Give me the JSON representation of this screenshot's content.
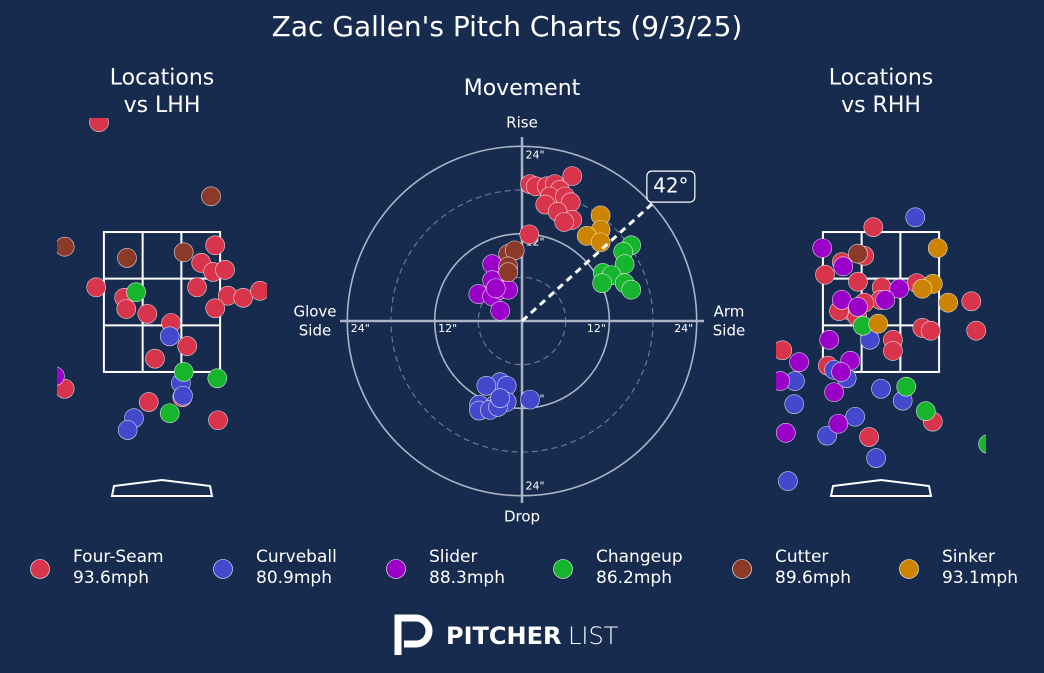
{
  "title": "Zac Gallen's Pitch Charts (9/3/25)",
  "chart_data": [
    {
      "type": "scatter",
      "title": "Locations\nvs LHH",
      "strike_zone": true,
      "xlim": [
        -1.5,
        1.5
      ],
      "ylim": [
        -0.33,
        5.13
      ],
      "series": [
        {
          "name": "Four-Seam",
          "color": "#d8344c",
          "x": [
            -0.9,
            -0.94,
            -0.54,
            -0.51,
            -0.21,
            0.13,
            -0.1,
            0.36,
            0.76,
            0.56,
            0.73,
            0.9,
            0.5,
            0.94,
            1.16,
            1.4,
            0.76,
            -1.39,
            -0.19,
            0.29,
            0.8
          ],
          "y": [
            5.07,
            2.71,
            2.56,
            2.4,
            2.33,
            2.2,
            1.69,
            1.87,
            3.31,
            3.06,
            2.93,
            2.96,
            2.71,
            2.59,
            2.56,
            2.66,
            2.41,
            1.26,
            1.07,
            1.14,
            0.81
          ]
        },
        {
          "name": "Curveball",
          "color": "#4448cc",
          "x": [
            0.11,
            0.27,
            0.3,
            -0.4,
            -0.49
          ],
          "y": [
            2.01,
            1.34,
            1.16,
            0.84,
            0.67
          ]
        },
        {
          "name": "Slider",
          "color": "#9b00c8",
          "x": [
            -1.53
          ],
          "y": [
            1.44
          ]
        },
        {
          "name": "Changeup",
          "color": "#17b42d",
          "x": [
            -0.37,
            0.31,
            0.79,
            0.11
          ],
          "y": [
            2.64,
            1.5,
            1.41,
            0.91
          ]
        },
        {
          "name": "Cutter",
          "color": "#8b3a2a",
          "x": [
            0.7,
            -1.39,
            -0.5,
            0.31
          ],
          "y": [
            4.01,
            3.29,
            3.13,
            3.21
          ]
        }
      ]
    },
    {
      "type": "scatter",
      "title": "Movement",
      "grid": "polar",
      "xlim": [
        -25,
        25
      ],
      "ylim": [
        -25,
        25
      ],
      "xticks": [
        {
          "value": -24,
          "label": "24\""
        },
        {
          "value": -12,
          "label": "12\""
        },
        {
          "value": 12,
          "label": "12\""
        },
        {
          "value": 24,
          "label": "24\""
        }
      ],
      "yticks": [
        {
          "value": -24,
          "label": "24\""
        },
        {
          "value": -12,
          "label": "12\""
        },
        {
          "value": 12,
          "label": "12\""
        },
        {
          "value": 24,
          "label": "24\""
        }
      ],
      "axis_labels": {
        "top": "Rise",
        "bottom": "Drop",
        "left": "Glove\nSide",
        "right": "Arm\nSide"
      },
      "arm_angle": {
        "value": 42,
        "label": "42°"
      },
      "series": [
        {
          "name": "Four-Seam",
          "color": "#d8344c",
          "x": [
            1.1,
            1.9,
            3.4,
            4.5,
            6.9,
            5.2,
            3.8,
            5.9,
            6.7,
            3.2,
            4.9,
            6.9,
            5.8,
            1.0
          ],
          "y": [
            18.8,
            18.5,
            18.5,
            18.8,
            19.9,
            18.0,
            17.1,
            17.1,
            16.3,
            16.0,
            15.0,
            13.9,
            13.6,
            11.9
          ]
        },
        {
          "name": "Curveball",
          "color": "#4448cc",
          "x": [
            -3,
            -4.9,
            -2.1,
            1.1,
            -5.9,
            -3.7,
            -2.1,
            -5.9,
            -4.4,
            -3.3,
            -3
          ],
          "y": [
            -8.4,
            -8.9,
            -8.9,
            -10.8,
            -11.5,
            -11.5,
            -11.1,
            -12.3,
            -12.2,
            -11.8,
            -10.6
          ]
        },
        {
          "name": "Slider",
          "color": "#9b00c8",
          "x": [
            -4.1,
            -4.1,
            -6,
            -4.1,
            -3,
            -1.9,
            -3,
            -3.6
          ],
          "y": [
            7.8,
            5.6,
            3.7,
            3.4,
            4.3,
            4.3,
            1.4,
            4.5
          ]
        },
        {
          "name": "Changeup",
          "color": "#17b42d",
          "x": [
            15,
            13.9,
            14.1,
            11.1,
            12.3,
            11,
            14.1,
            15
          ],
          "y": [
            10.4,
            9.5,
            7.8,
            6.6,
            6.3,
            5.2,
            5.2,
            4.3
          ]
        },
        {
          "name": "Cutter",
          "color": "#8b3a2a",
          "x": [
            -1.9,
            -1,
            -1.9,
            -1.9
          ],
          "y": [
            9.2,
            9.7,
            7.5,
            6.7
          ]
        },
        {
          "name": "Sinker",
          "color": "#cc8400",
          "x": [
            10.8,
            10.8,
            8.9,
            10.8
          ],
          "y": [
            14.5,
            12.5,
            11.7,
            10.8
          ]
        }
      ]
    },
    {
      "type": "scatter",
      "title": "Locations\nvs RHH",
      "strike_zone": true,
      "xlim": [
        -1.5,
        1.5
      ],
      "ylim": [
        -0.33,
        5.13
      ],
      "series": [
        {
          "name": "Four-Seam",
          "color": "#d8344c",
          "x": [
            -0.11,
            -0.24,
            -0.56,
            -0.8,
            -0.33,
            0.01,
            0.51,
            -0.01,
            -0.24,
            -0.43,
            -0.6,
            -0.34,
            1.29,
            0.59,
            0.71,
            0.17,
            0.17,
            -1.41,
            -0.76,
            1.36,
            -0.17,
            0.74
          ],
          "y": [
            3.57,
            3.16,
            3.07,
            2.89,
            2.79,
            2.71,
            2.77,
            2.53,
            2.49,
            2.37,
            2.37,
            2.29,
            2.51,
            2.13,
            2.09,
            1.96,
            1.8,
            1.81,
            1.59,
            2.09,
            0.57,
            0.79
          ]
        },
        {
          "name": "Curveball",
          "color": "#4448cc",
          "x": [
            0.49,
            -0.16,
            -0.67,
            -0.49,
            -1.23,
            -1.24,
            0,
            -0.37,
            -0.77,
            0.31,
            -0.07,
            -1.33
          ],
          "y": [
            3.71,
            1.96,
            1.53,
            1.41,
            1.37,
            1.04,
            1.26,
            0.86,
            0.59,
            1.09,
            0.27,
            -0.06
          ]
        },
        {
          "name": "Slider",
          "color": "#9b00c8",
          "x": [
            -0.84,
            -0.54,
            -0.56,
            0.26,
            -0.33,
            0.06,
            -0.74,
            -0.44,
            -0.57,
            -1.44,
            -1.17,
            -0.67,
            -0.61,
            -1.36
          ],
          "y": [
            3.27,
            3.01,
            2.53,
            2.69,
            2.43,
            2.53,
            1.96,
            1.66,
            1.5,
            1.37,
            1.64,
            1.21,
            0.76,
            0.63
          ]
        },
        {
          "name": "Changeup",
          "color": "#17b42d",
          "x": [
            -0.26,
            0.36,
            0.64,
            1.53
          ],
          "y": [
            2.16,
            1.29,
            0.94,
            0.47
          ]
        },
        {
          "name": "Cutter",
          "color": "#8b3a2a",
          "x": [
            -0.33
          ],
          "y": [
            3.19
          ]
        },
        {
          "name": "Sinker",
          "color": "#cc8400",
          "x": [
            0.81,
            0.74,
            0.59,
            0.96,
            -0.04
          ],
          "y": [
            3.27,
            2.76,
            2.69,
            2.49,
            2.19
          ]
        }
      ]
    }
  ],
  "legend": {
    "items": [
      {
        "name": "Four-Seam",
        "color": "#d8344c",
        "velocity": {
          "value": 93.6,
          "label": "93.6mph"
        }
      },
      {
        "name": "Curveball",
        "color": "#4448cc",
        "velocity": {
          "value": 80.9,
          "label": "80.9mph"
        }
      },
      {
        "name": "Slider",
        "color": "#9b00c8",
        "velocity": {
          "value": 88.3,
          "label": "88.3mph"
        }
      },
      {
        "name": "Changeup",
        "color": "#17b42d",
        "velocity": {
          "value": 86.2,
          "label": "86.2mph"
        }
      },
      {
        "name": "Cutter",
        "color": "#8b3a2a",
        "velocity": {
          "value": 89.6,
          "label": "89.6mph"
        }
      },
      {
        "name": "Sinker",
        "color": "#cc8400",
        "velocity": {
          "value": 93.1,
          "label": "93.1mph"
        }
      }
    ]
  },
  "logo": {
    "bold": "PITCHER",
    "light": "LIST"
  }
}
